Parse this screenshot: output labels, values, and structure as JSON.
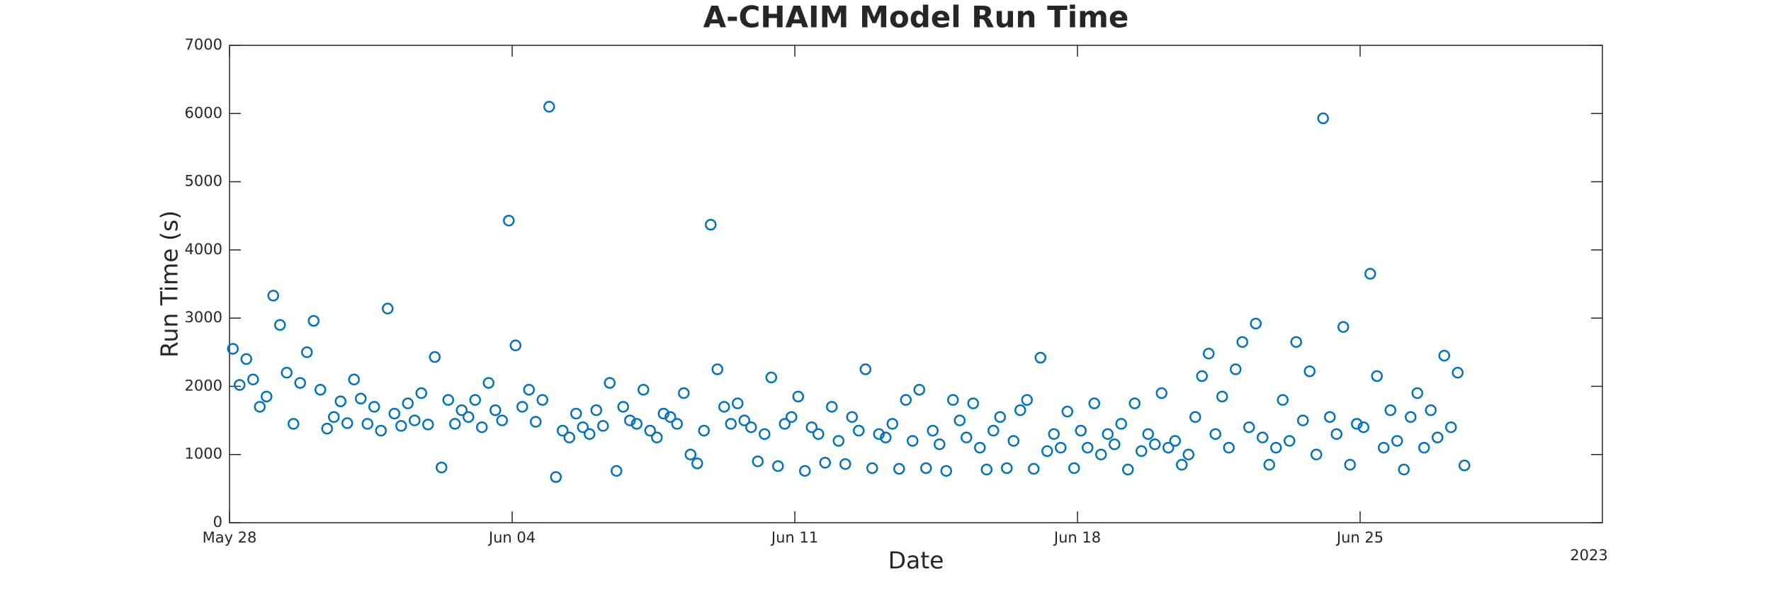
{
  "chart_data": {
    "type": "scatter",
    "title": "A-CHAIM Model Run Time",
    "xlabel": "Date",
    "ylabel": "Run Time (s)",
    "x_offset_label": "2023",
    "color": "#0072bd",
    "xlim": [
      "2023-05-28T00:00",
      "2023-07-01T00:00"
    ],
    "xticks": [
      {
        "value": "2023-05-28T00:00",
        "label": "May 28"
      },
      {
        "value": "2023-06-04T00:00",
        "label": "Jun 04"
      },
      {
        "value": "2023-06-11T00:00",
        "label": "Jun 11"
      },
      {
        "value": "2023-06-18T00:00",
        "label": "Jun 18"
      },
      {
        "value": "2023-06-25T00:00",
        "label": "Jun 25"
      }
    ],
    "ylim": [
      0,
      7000
    ],
    "yticks": [
      0,
      1000,
      2000,
      3000,
      4000,
      5000,
      6000,
      7000
    ],
    "x": [
      "2023-05-28T02:00",
      "2023-05-28T06:00",
      "2023-05-28T10:00",
      "2023-05-28T14:00",
      "2023-05-28T18:00",
      "2023-05-28T22:00",
      "2023-05-29T02:00",
      "2023-05-29T06:00",
      "2023-05-29T10:00",
      "2023-05-29T14:00",
      "2023-05-29T18:00",
      "2023-05-29T22:00",
      "2023-05-30T02:00",
      "2023-05-30T06:00",
      "2023-05-30T10:00",
      "2023-05-30T14:00",
      "2023-05-30T18:00",
      "2023-05-30T22:00",
      "2023-05-31T02:00",
      "2023-05-31T06:00",
      "2023-05-31T10:00",
      "2023-05-31T14:00",
      "2023-05-31T18:00",
      "2023-05-31T22:00",
      "2023-06-01T02:00",
      "2023-06-01T06:00",
      "2023-06-01T10:00",
      "2023-06-01T14:00",
      "2023-06-01T18:00",
      "2023-06-01T22:00",
      "2023-06-02T02:00",
      "2023-06-02T06:00",
      "2023-06-02T10:00",
      "2023-06-02T14:00",
      "2023-06-02T18:00",
      "2023-06-02T22:00",
      "2023-06-03T02:00",
      "2023-06-03T06:00",
      "2023-06-03T10:00",
      "2023-06-03T14:00",
      "2023-06-03T18:00",
      "2023-06-03T22:00",
      "2023-06-04T02:00",
      "2023-06-04T06:00",
      "2023-06-04T10:00",
      "2023-06-04T14:00",
      "2023-06-04T18:00",
      "2023-06-04T22:00",
      "2023-06-05T02:00",
      "2023-06-05T06:00",
      "2023-06-05T10:00",
      "2023-06-05T14:00",
      "2023-06-05T18:00",
      "2023-06-05T22:00",
      "2023-06-06T02:00",
      "2023-06-06T06:00",
      "2023-06-06T10:00",
      "2023-06-06T14:00",
      "2023-06-06T18:00",
      "2023-06-06T22:00",
      "2023-06-07T02:00",
      "2023-06-07T06:00",
      "2023-06-07T10:00",
      "2023-06-07T14:00",
      "2023-06-07T18:00",
      "2023-06-07T22:00",
      "2023-06-08T02:00",
      "2023-06-08T06:00",
      "2023-06-08T10:00",
      "2023-06-08T14:00",
      "2023-06-08T18:00",
      "2023-06-08T22:00",
      "2023-06-09T02:00",
      "2023-06-09T06:00",
      "2023-06-09T10:00",
      "2023-06-09T14:00",
      "2023-06-09T18:00",
      "2023-06-09T22:00",
      "2023-06-10T02:00",
      "2023-06-10T06:00",
      "2023-06-10T10:00",
      "2023-06-10T14:00",
      "2023-06-10T18:00",
      "2023-06-10T22:00",
      "2023-06-11T02:00",
      "2023-06-11T06:00",
      "2023-06-11T10:00",
      "2023-06-11T14:00",
      "2023-06-11T18:00",
      "2023-06-11T22:00",
      "2023-06-12T02:00",
      "2023-06-12T06:00",
      "2023-06-12T10:00",
      "2023-06-12T14:00",
      "2023-06-12T18:00",
      "2023-06-12T22:00",
      "2023-06-13T02:00",
      "2023-06-13T06:00",
      "2023-06-13T10:00",
      "2023-06-13T14:00",
      "2023-06-13T18:00",
      "2023-06-13T22:00",
      "2023-06-14T02:00",
      "2023-06-14T06:00",
      "2023-06-14T10:00",
      "2023-06-14T14:00",
      "2023-06-14T18:00",
      "2023-06-14T22:00",
      "2023-06-15T02:00",
      "2023-06-15T06:00",
      "2023-06-15T10:00",
      "2023-06-15T14:00",
      "2023-06-15T18:00",
      "2023-06-15T22:00",
      "2023-06-16T02:00",
      "2023-06-16T06:00",
      "2023-06-16T10:00",
      "2023-06-16T14:00",
      "2023-06-16T18:00",
      "2023-06-16T22:00",
      "2023-06-17T02:00",
      "2023-06-17T06:00",
      "2023-06-17T10:00",
      "2023-06-17T14:00",
      "2023-06-17T18:00",
      "2023-06-17T22:00",
      "2023-06-18T02:00",
      "2023-06-18T06:00",
      "2023-06-18T10:00",
      "2023-06-18T14:00",
      "2023-06-18T18:00",
      "2023-06-18T22:00",
      "2023-06-19T02:00",
      "2023-06-19T06:00",
      "2023-06-19T10:00",
      "2023-06-19T14:00",
      "2023-06-19T18:00",
      "2023-06-19T22:00",
      "2023-06-20T02:00",
      "2023-06-20T06:00",
      "2023-06-20T10:00",
      "2023-06-20T14:00",
      "2023-06-20T18:00",
      "2023-06-20T22:00",
      "2023-06-21T02:00",
      "2023-06-21T06:00",
      "2023-06-21T10:00",
      "2023-06-21T14:00",
      "2023-06-21T18:00",
      "2023-06-21T22:00",
      "2023-06-22T02:00",
      "2023-06-22T06:00",
      "2023-06-22T10:00",
      "2023-06-22T14:00",
      "2023-06-22T18:00",
      "2023-06-22T22:00",
      "2023-06-23T02:00",
      "2023-06-23T06:00",
      "2023-06-23T10:00",
      "2023-06-23T14:00",
      "2023-06-23T18:00",
      "2023-06-23T22:00",
      "2023-06-24T02:00",
      "2023-06-24T06:00",
      "2023-06-24T10:00",
      "2023-06-24T14:00",
      "2023-06-24T18:00",
      "2023-06-24T22:00",
      "2023-06-25T02:00",
      "2023-06-25T06:00",
      "2023-06-25T10:00",
      "2023-06-25T14:00",
      "2023-06-25T18:00",
      "2023-06-25T22:00",
      "2023-06-26T02:00",
      "2023-06-26T06:00",
      "2023-06-26T10:00",
      "2023-06-26T14:00",
      "2023-06-26T18:00",
      "2023-06-26T22:00",
      "2023-06-27T02:00",
      "2023-06-27T06:00",
      "2023-06-27T10:00",
      "2023-06-27T14:00"
    ],
    "values": [
      2550,
      2020,
      2400,
      2100,
      1700,
      1850,
      3330,
      2900,
      2200,
      1450,
      2050,
      2500,
      2960,
      1950,
      1380,
      1550,
      1780,
      1460,
      2100,
      1820,
      1450,
      1700,
      1350,
      3140,
      1600,
      1420,
      1750,
      1500,
      1900,
      1440,
      2430,
      810,
      1800,
      1450,
      1650,
      1550,
      1800,
      1400,
      2050,
      1650,
      1500,
      4430,
      2600,
      1700,
      1950,
      1480,
      1800,
      6100,
      670,
      1350,
      1250,
      1600,
      1400,
      1300,
      1650,
      1420,
      2050,
      760,
      1700,
      1500,
      1450,
      1950,
      1350,
      1250,
      1600,
      1550,
      1450,
      1900,
      1000,
      870,
      1350,
      4370,
      2250,
      1700,
      1450,
      1750,
      1500,
      1400,
      900,
      1300,
      2130,
      830,
      1450,
      1550,
      1850,
      760,
      1400,
      1300,
      880,
      1700,
      1200,
      860,
      1550,
      1350,
      2250,
      800,
      1300,
      1250,
      1450,
      790,
      1800,
      1200,
      1950,
      800,
      1350,
      1150,
      760,
      1800,
      1500,
      1250,
      1750,
      1100,
      780,
      1350,
      1550,
      800,
      1200,
      1650,
      1800,
      790,
      2420,
      1050,
      1300,
      1100,
      1630,
      800,
      1350,
      1100,
      1750,
      1000,
      1300,
      1150,
      1450,
      780,
      1750,
      1050,
      1300,
      1150,
      1900,
      1100,
      1200,
      850,
      1000,
      1550,
      2150,
      2480,
      1300,
      1850,
      1100,
      2250,
      2650,
      1400,
      2920,
      1250,
      850,
      1100,
      1800,
      1200,
      2650,
      1500,
      2220,
      1000,
      5930,
      1550,
      1300,
      2870,
      850,
      1450,
      1400,
      3650,
      2150,
      1100,
      1650,
      1200,
      780,
      1550,
      1900,
      1100,
      1650,
      1250,
      2450,
      1400,
      2200,
      840
    ]
  }
}
